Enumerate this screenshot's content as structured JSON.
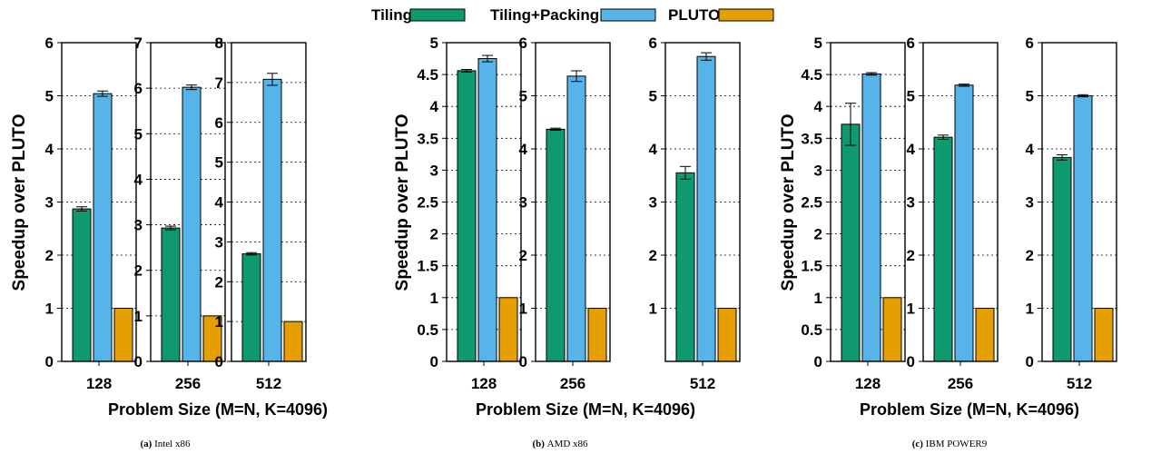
{
  "legend": {
    "entries": [
      {
        "label": "Tiling",
        "color": "#0e9a6e"
      },
      {
        "label": "Tiling+Packing",
        "color": "#56b4e9"
      },
      {
        "label": "PLUTO",
        "color": "#e69f00"
      }
    ]
  },
  "chart_data": [
    {
      "type": "bar",
      "group": "Intel x86",
      "caption_tag": "(a)",
      "caption_name": "Intel x86",
      "ylabel": "Speedup over PLUTO",
      "xlabel": "Problem Size (M=N, K=4096)",
      "series_names": [
        "Tiling",
        "Tiling+Packing",
        "PLUTO"
      ],
      "panels": [
        {
          "category": "128",
          "ylim": [
            0,
            6
          ],
          "yticks": [
            "0",
            "1",
            "2",
            "3",
            "4",
            "5",
            "6"
          ],
          "values": [
            2.87,
            5.04,
            1.0
          ],
          "errors": [
            0.04,
            0.05,
            0
          ]
        },
        {
          "category": "256",
          "ylim": [
            0,
            7
          ],
          "yticks": [
            "0",
            "1",
            "2",
            "3",
            "4",
            "5",
            "6",
            "7"
          ],
          "values": [
            2.93,
            6.02,
            1.0
          ],
          "errors": [
            0.04,
            0.05,
            0
          ]
        },
        {
          "category": "512",
          "ylim": [
            0,
            8
          ],
          "yticks": [
            "0",
            "1",
            "2",
            "3",
            "4",
            "5",
            "6",
            "7",
            "8"
          ],
          "values": [
            2.7,
            7.08,
            1.0
          ],
          "errors": [
            0.03,
            0.15,
            0
          ]
        }
      ]
    },
    {
      "type": "bar",
      "group": "AMD x86",
      "caption_tag": "(b)",
      "caption_name": "AMD x86",
      "ylabel": "Speedup over PLUTO",
      "xlabel": "Problem Size (M=N, K=4096)",
      "series_names": [
        "Tiling",
        "Tiling+Packing",
        "PLUTO"
      ],
      "panels": [
        {
          "category": "128",
          "ylim": [
            0,
            5
          ],
          "yticks": [
            "0",
            "0.5",
            "1",
            "1.5",
            "2",
            "2.5",
            "3",
            "3.5",
            "4",
            "4.5",
            "5"
          ],
          "values": [
            4.56,
            4.75,
            1.0
          ],
          "errors": [
            0.02,
            0.05,
            0
          ]
        },
        {
          "category": "256",
          "ylim": [
            0,
            6
          ],
          "yticks": [
            "0",
            "1",
            "2",
            "3",
            "4",
            "5",
            "6"
          ],
          "values": [
            4.37,
            5.37,
            1.0
          ],
          "errors": [
            0.02,
            0.1,
            0
          ]
        },
        {
          "category": "512",
          "ylim": [
            0,
            6
          ],
          "yticks": [
            "1",
            "2",
            "3",
            "4",
            "5",
            "6"
          ],
          "values": [
            3.55,
            5.74,
            1.0
          ],
          "errors": [
            0.12,
            0.07,
            0
          ]
        }
      ]
    },
    {
      "type": "bar",
      "group": "IBM POWER9",
      "caption_tag": "(c)",
      "caption_name": "IBM POWER9",
      "ylabel": "Speedup over PLUTO",
      "xlabel": "Problem Size (M=N, K=4096)",
      "series_names": [
        "Tiling",
        "Tiling+Packing",
        "PLUTO"
      ],
      "panels": [
        {
          "category": "128",
          "ylim": [
            0,
            5
          ],
          "yticks": [
            "0",
            "0.5",
            "1",
            "1.5",
            "2",
            "2.5",
            "3",
            "3.5",
            "4",
            "4.5",
            "5"
          ],
          "values": [
            3.72,
            4.51,
            1.0
          ],
          "errors": [
            0.33,
            0.02,
            0
          ]
        },
        {
          "category": "256",
          "ylim": [
            0,
            6
          ],
          "yticks": [
            "0",
            "1",
            "2",
            "3",
            "4",
            "5",
            "6"
          ],
          "values": [
            4.22,
            5.2,
            1.0
          ],
          "errors": [
            0.04,
            0.02,
            0
          ]
        },
        {
          "category": "512",
          "ylim": [
            0,
            6
          ],
          "yticks": [
            "0",
            "1",
            "2",
            "3",
            "4",
            "5",
            "6"
          ],
          "values": [
            3.84,
            5.0,
            1.0
          ],
          "errors": [
            0.05,
            0.02,
            0
          ]
        }
      ]
    }
  ]
}
